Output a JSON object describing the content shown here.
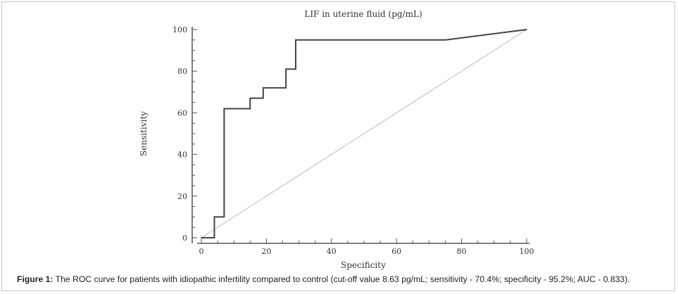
{
  "caption": {
    "label": "Figure 1:",
    "text": "The ROC curve for patients with idiopathic infertility compared to control (cut-off value 8.63 pg/mL; sensitivity - 70.4%; specificity - 95.2%; AUC - 0.833)."
  },
  "chart_data": {
    "type": "line",
    "title": "LIF in uterine fluid (pg/mL)",
    "xlabel": "Specificity",
    "ylabel": "Sensitivity",
    "xlim": [
      0,
      100
    ],
    "ylim": [
      0,
      100
    ],
    "xticks": [
      0,
      20,
      40,
      60,
      80,
      100
    ],
    "yticks": [
      0,
      20,
      40,
      60,
      80,
      100
    ],
    "grid": false,
    "colors": {
      "roc": "#444444",
      "diagonal": "#c8c8c8",
      "axis": "#555555"
    },
    "series": [
      {
        "x": [
          0,
          4,
          4,
          7,
          7,
          15,
          15,
          19,
          19,
          26,
          26,
          29,
          29,
          75,
          100
        ],
        "y": [
          0,
          0,
          10,
          10,
          62,
          62,
          67,
          67,
          72,
          72,
          81,
          81,
          95,
          95,
          100
        ]
      },
      {
        "x": [
          0,
          100
        ],
        "y": [
          0,
          100
        ]
      }
    ]
  }
}
